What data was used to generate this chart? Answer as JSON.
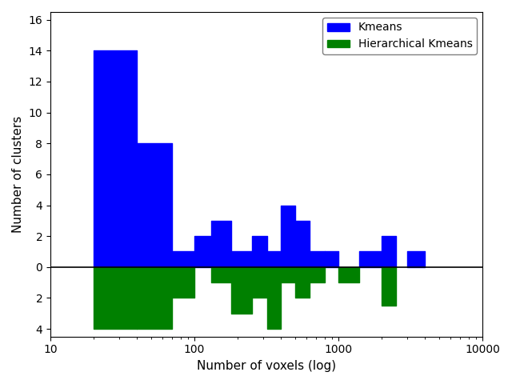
{
  "xlabel": "Number of voxels (log)",
  "ylabel": "Number of clusters",
  "xlim": [
    20,
    10000
  ],
  "ylim": [
    -4.5,
    16.5
  ],
  "yticks": [
    -4,
    -2,
    0,
    2,
    4,
    6,
    8,
    10,
    12,
    14,
    16
  ],
  "yticklabels": [
    "4",
    "2",
    "0",
    "2",
    "4",
    "6",
    "8",
    "10",
    "12",
    "14",
    "16"
  ],
  "kmeans_color": "#0000ff",
  "hkmeans_color": "#008000",
  "legend_labels": [
    "Kmeans",
    "Hierarchical Kmeans"
  ],
  "bins": [
    20,
    40,
    70,
    100,
    130,
    180,
    250,
    320,
    400,
    500,
    630,
    800,
    1000,
    1400,
    2000,
    2500,
    3000,
    4000,
    10000
  ],
  "kmeans_heights": [
    14,
    8,
    1,
    2,
    3,
    1,
    2,
    1,
    4,
    3,
    1,
    1,
    0,
    1,
    2,
    0,
    1,
    0
  ],
  "hkmeans_heights": [
    4,
    4,
    2,
    0,
    1,
    3,
    2,
    4,
    1,
    2,
    1,
    0,
    1,
    0,
    2.5,
    0,
    0,
    0
  ]
}
